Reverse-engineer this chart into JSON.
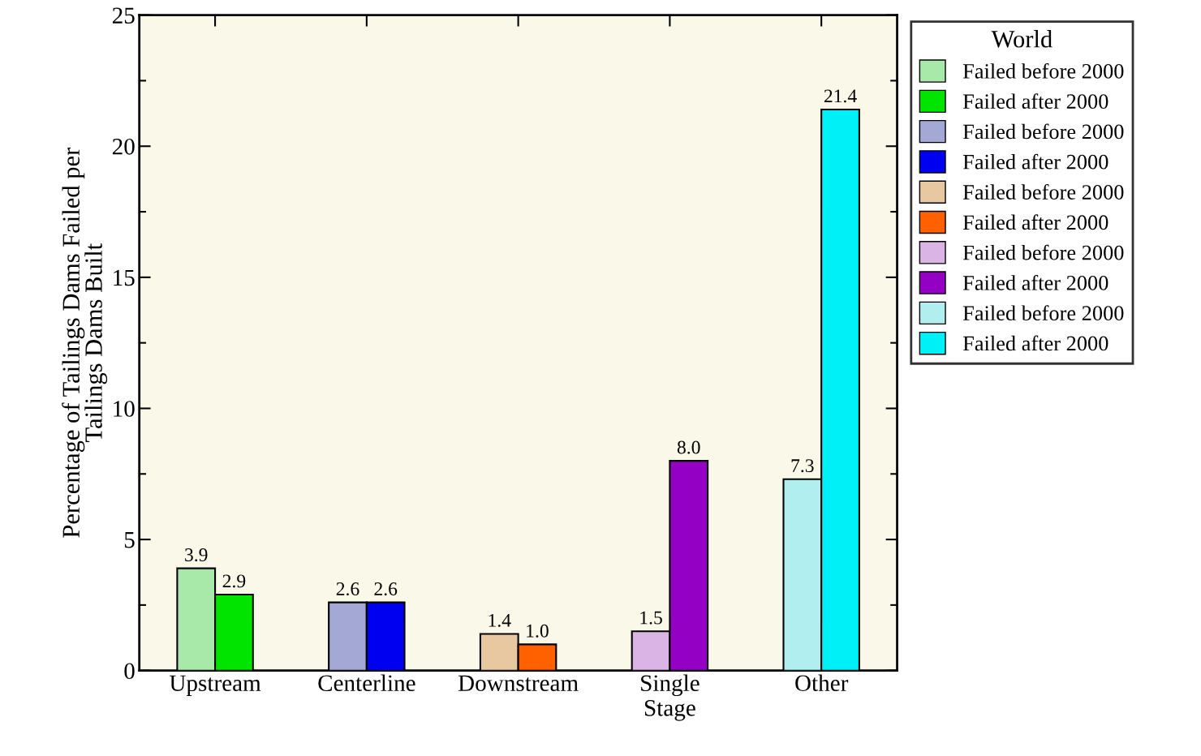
{
  "chart_data": {
    "type": "bar",
    "categories": [
      "Upstream",
      "Centerline",
      "Downstream",
      "Single\nStage",
      "Other"
    ],
    "ylabel": "Percentage of Tailings Dams Failed per\nTailings Dams Built",
    "legend_title": "World",
    "series": [
      {
        "name": "Failed before 2000",
        "colors": [
          "#a8e8a8",
          "#a4a8d4",
          "#e8c8a0",
          "#dab4e4",
          "#b0eef0"
        ],
        "values": [
          3.9,
          2.6,
          1.4,
          1.5,
          7.3
        ],
        "value_labels": [
          "3.9",
          "2.6",
          "1.4",
          "1.5",
          "7.3"
        ]
      },
      {
        "name": "Failed after 2000",
        "colors": [
          "#00e400",
          "#0000f0",
          "#ff6000",
          "#9400c4",
          "#00f0f8"
        ],
        "values": [
          2.9,
          2.6,
          1.0,
          8.0,
          21.4
        ],
        "value_labels": [
          "2.9",
          "2.6",
          "1.0",
          "8.0",
          "21.4"
        ]
      }
    ],
    "ylim": [
      0,
      25
    ],
    "yticks": [
      0,
      5,
      10,
      15,
      20,
      25
    ],
    "grid": false,
    "legend": "right"
  }
}
